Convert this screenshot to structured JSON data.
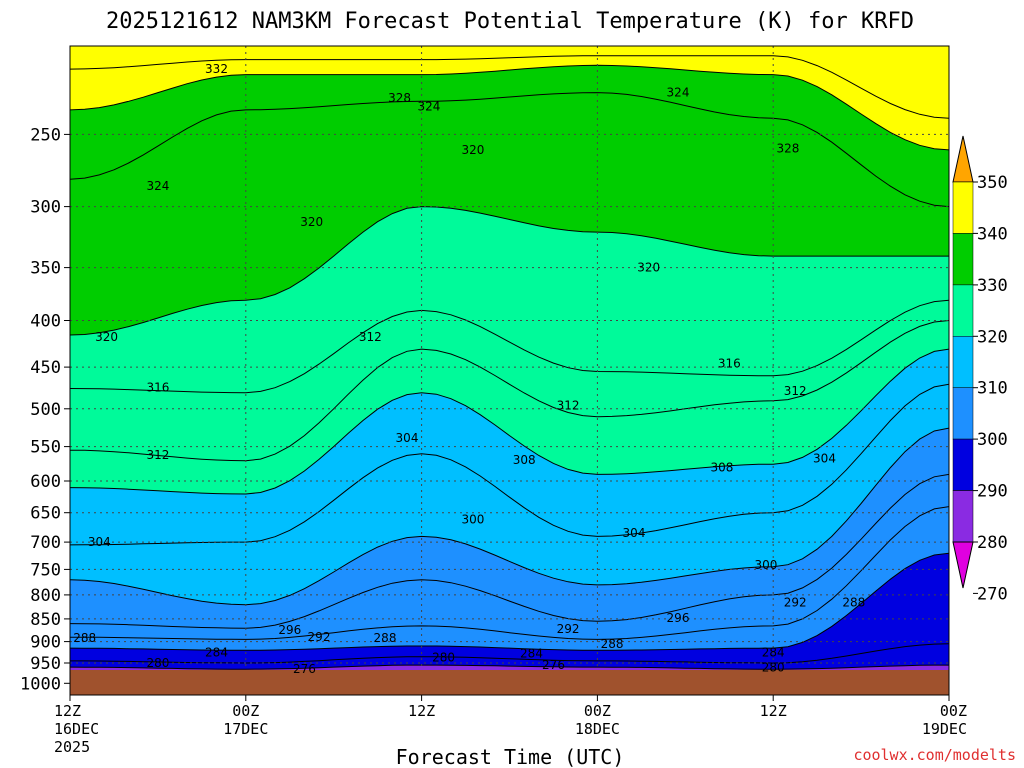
{
  "chart_data": {
    "type": "heatmap",
    "title": "2025121612 NAM3KM Forecast Potential Temperature (K) for KRFD",
    "xlabel": "Forecast Time (UTC)",
    "ylabel": "",
    "y_ticks": [
      "250",
      "300",
      "350",
      "400",
      "450",
      "500",
      "550",
      "600",
      "650",
      "700",
      "750",
      "800",
      "850",
      "900",
      "950",
      "1000"
    ],
    "y_values_hpa": [
      250,
      300,
      350,
      400,
      450,
      500,
      550,
      600,
      650,
      700,
      750,
      800,
      850,
      900,
      950,
      1000
    ],
    "x_ticks": [
      {
        "time": "12Z",
        "date": "16DEC",
        "year": "2025",
        "hour": 0
      },
      {
        "time": "00Z",
        "date": "17DEC",
        "year": "",
        "hour": 12
      },
      {
        "time": "12Z",
        "date": "",
        "year": "",
        "hour": 24
      },
      {
        "time": "00Z",
        "date": "18DEC",
        "year": "",
        "hour": 36
      },
      {
        "time": "12Z",
        "date": "",
        "year": "",
        "hour": 48
      },
      {
        "time": "00Z",
        "date": "19DEC",
        "year": "",
        "hour": 60
      }
    ],
    "x_range_hours": [
      0,
      60
    ],
    "y_range_hpa": [
      200,
      1030
    ],
    "contour_interval_k": 4,
    "isentropes_hpa_at_hours": {
      "hours": [
        0,
        12,
        24,
        36,
        48,
        60
      ],
      "levels": [
        {
          "theta": 276,
          "p": [
            985,
            985,
            970,
            975,
            985,
            975
          ]
        },
        {
          "theta": 280,
          "p": [
            960,
            965,
            955,
            960,
            965,
            955
          ]
        },
        {
          "theta": 284,
          "p": [
            945,
            950,
            935,
            945,
            950,
            905
          ]
        },
        {
          "theta": 288,
          "p": [
            915,
            920,
            910,
            920,
            915,
            720
          ]
        },
        {
          "theta": 292,
          "p": [
            890,
            895,
            865,
            895,
            865,
            640
          ]
        },
        {
          "theta": 296,
          "p": [
            860,
            870,
            770,
            855,
            800,
            590
          ]
        },
        {
          "theta": 300,
          "p": [
            770,
            820,
            690,
            780,
            745,
            525
          ]
        },
        {
          "theta": 304,
          "p": [
            705,
            700,
            560,
            690,
            650,
            470
          ]
        },
        {
          "theta": 308,
          "p": [
            610,
            620,
            480,
            590,
            575,
            430
          ]
        },
        {
          "theta": 312,
          "p": [
            555,
            570,
            430,
            510,
            490,
            400
          ]
        },
        {
          "theta": 316,
          "p": [
            475,
            480,
            390,
            455,
            460,
            380
          ]
        },
        {
          "theta": 320,
          "p": [
            415,
            380,
            300,
            320,
            340,
            340
          ]
        },
        {
          "theta": 324,
          "p": [
            280,
            235,
            230,
            225,
            240,
            300
          ]
        },
        {
          "theta": 328,
          "p": [
            235,
            215,
            215,
            210,
            215,
            260
          ]
        },
        {
          "theta": 332,
          "p": [
            212,
            207,
            207,
            205,
            205,
            240
          ]
        }
      ]
    },
    "contour_labels": [
      {
        "text": "332",
        "hour": 10.0,
        "p": 212
      },
      {
        "text": "328",
        "hour": 22.5,
        "p": 228
      },
      {
        "text": "324",
        "hour": 24.5,
        "p": 233
      },
      {
        "text": "324",
        "hour": 41.5,
        "p": 225
      },
      {
        "text": "320",
        "hour": 27.5,
        "p": 260
      },
      {
        "text": "328",
        "hour": 49.0,
        "p": 259
      },
      {
        "text": "324",
        "hour": 6.0,
        "p": 285
      },
      {
        "text": "320",
        "hour": 16.5,
        "p": 312
      },
      {
        "text": "320",
        "hour": 39.5,
        "p": 350
      },
      {
        "text": "320",
        "hour": 2.5,
        "p": 417
      },
      {
        "text": "312",
        "hour": 20.5,
        "p": 417
      },
      {
        "text": "316",
        "hour": 45.0,
        "p": 446
      },
      {
        "text": "316",
        "hour": 6.0,
        "p": 474
      },
      {
        "text": "312",
        "hour": 49.5,
        "p": 478
      },
      {
        "text": "312",
        "hour": 34.0,
        "p": 496
      },
      {
        "text": "304",
        "hour": 23.0,
        "p": 538
      },
      {
        "text": "312",
        "hour": 6.0,
        "p": 562
      },
      {
        "text": "308",
        "hour": 31.0,
        "p": 569
      },
      {
        "text": "308",
        "hour": 44.5,
        "p": 580
      },
      {
        "text": "304",
        "hour": 51.5,
        "p": 567
      },
      {
        "text": "300",
        "hour": 27.5,
        "p": 661
      },
      {
        "text": "304",
        "hour": 38.5,
        "p": 684
      },
      {
        "text": "304",
        "hour": 2.0,
        "p": 700
      },
      {
        "text": "300",
        "hour": 47.5,
        "p": 742
      },
      {
        "text": "292",
        "hour": 49.5,
        "p": 815
      },
      {
        "text": "288",
        "hour": 53.5,
        "p": 815
      },
      {
        "text": "296",
        "hour": 15.0,
        "p": 874
      },
      {
        "text": "296",
        "hour": 41.5,
        "p": 848
      },
      {
        "text": "292",
        "hour": 17.0,
        "p": 890
      },
      {
        "text": "292",
        "hour": 34.0,
        "p": 872
      },
      {
        "text": "288",
        "hour": 1.0,
        "p": 892
      },
      {
        "text": "288",
        "hour": 21.5,
        "p": 892
      },
      {
        "text": "288",
        "hour": 37.0,
        "p": 905
      },
      {
        "text": "284",
        "hour": 10.0,
        "p": 925
      },
      {
        "text": "284",
        "hour": 31.5,
        "p": 928
      },
      {
        "text": "284",
        "hour": 48.0,
        "p": 925
      },
      {
        "text": "280",
        "hour": 6.0,
        "p": 950
      },
      {
        "text": "280",
        "hour": 25.5,
        "p": 937
      },
      {
        "text": "280",
        "hour": 48.0,
        "p": 961
      },
      {
        "text": "276",
        "hour": 16.0,
        "p": 965
      },
      {
        "text": "276",
        "hour": 33.0,
        "p": 955
      }
    ],
    "colorbar": {
      "labels": [
        "350",
        "340",
        "330",
        "320",
        "310",
        "300",
        "290",
        "280",
        "270"
      ],
      "colors": [
        "#ffa500",
        "#ffff00",
        "#00cd00",
        "#00fa9a",
        "#00bfff",
        "#1e90ff",
        "#0000e0",
        "#8a2be2",
        "#e000e0"
      ]
    },
    "fill_colors": {
      "terrain": "#a0522d",
      "bin_270": "#e000e0",
      "bin_280": "#8a2be2",
      "bin_290": "#0000e0",
      "bin_300": "#1e90ff",
      "bin_310": "#00bfff",
      "bin_320": "#00fa9a",
      "bin_330": "#00cd00",
      "bin_340": "#ffff00",
      "bin_350": "#ffa500"
    },
    "credit": "coolwx.com/modelts",
    "credit_color": "#e03030"
  }
}
